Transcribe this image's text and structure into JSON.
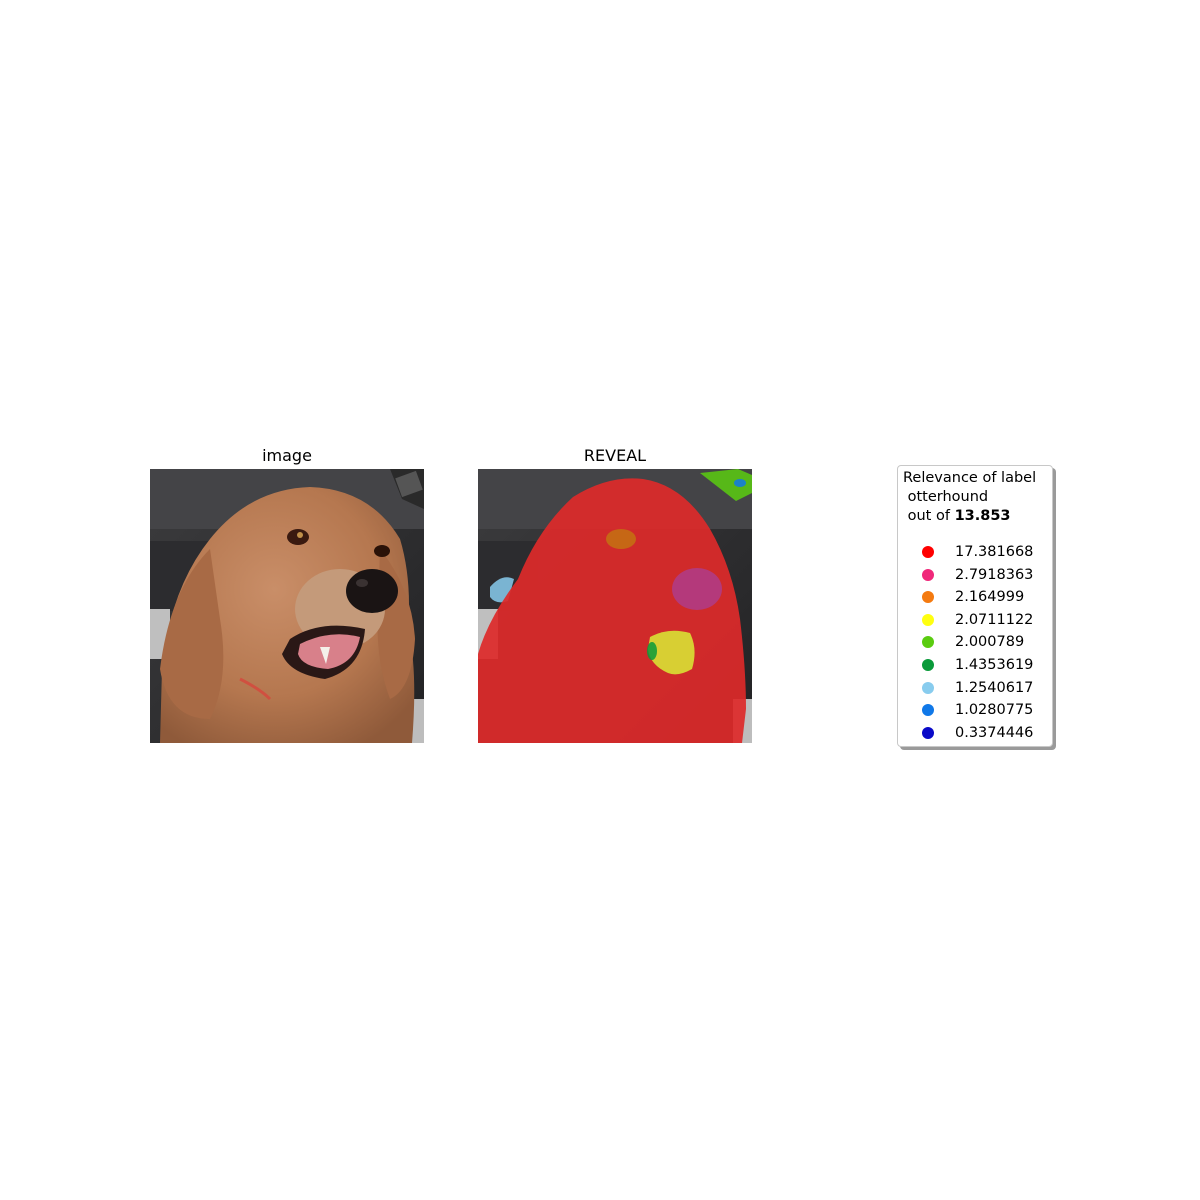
{
  "panels": {
    "image_title": "image",
    "reveal_title": "REVEAL"
  },
  "legend": {
    "title_line1": "Relevance of label",
    "title_line2": " otterhound",
    "title_prefix": " out of ",
    "total": "13.853",
    "items": [
      {
        "value": "17.381668",
        "color": "#ff0000"
      },
      {
        "value": "2.7918363",
        "color": "#f0287a"
      },
      {
        "value": "2.164999",
        "color": "#f47a10"
      },
      {
        "value": "2.0711122",
        "color": "#ffff10"
      },
      {
        "value": "2.000789",
        "color": "#5acc10"
      },
      {
        "value": "1.4353619",
        "color": "#0a9a3a"
      },
      {
        "value": "1.2540617",
        "color": "#88ccee"
      },
      {
        "value": "1.0280775",
        "color": "#1078e8"
      },
      {
        "value": "0.3374446",
        "color": "#0a0ac8"
      }
    ]
  }
}
